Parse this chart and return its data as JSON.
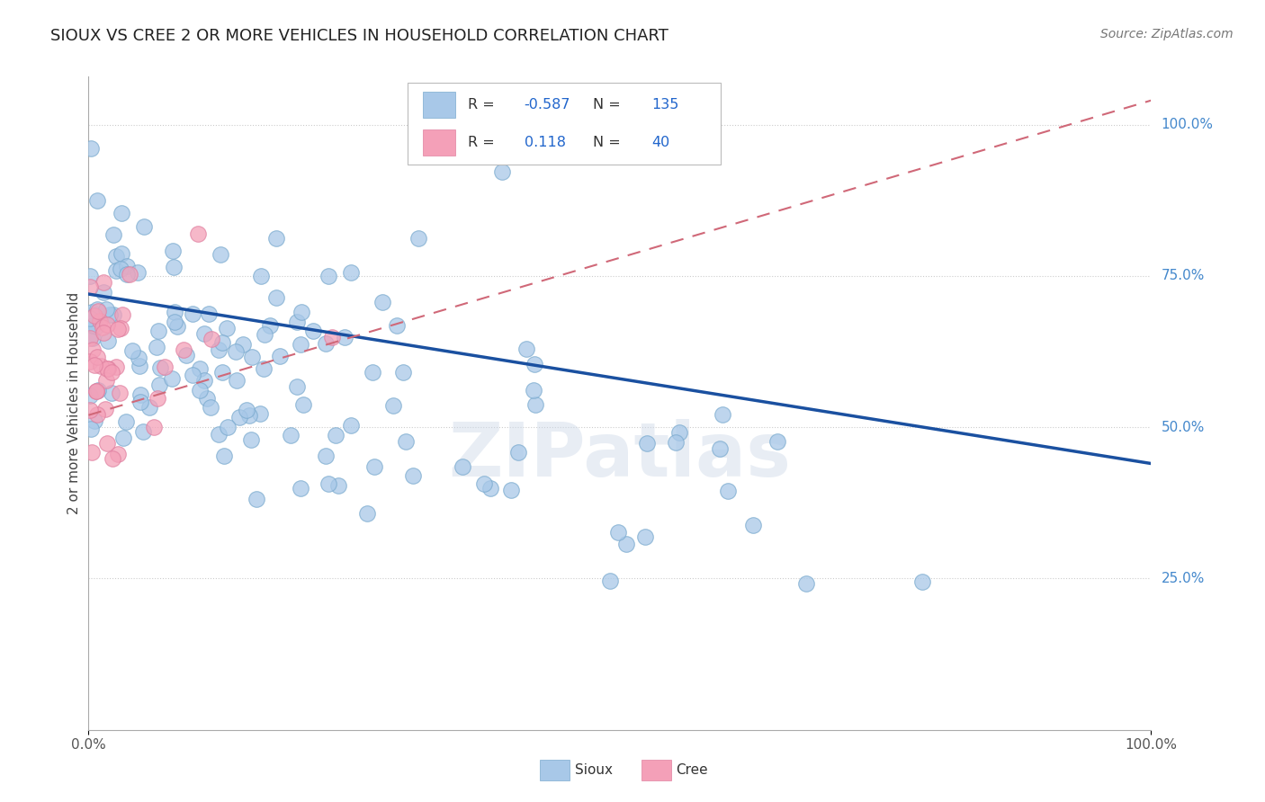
{
  "title": "SIOUX VS CREE 2 OR MORE VEHICLES IN HOUSEHOLD CORRELATION CHART",
  "source": "Source: ZipAtlas.com",
  "ylabel": "2 or more Vehicles in Household",
  "watermark": "ZIPatlas",
  "sioux_R": -0.587,
  "sioux_N": 135,
  "cree_R": 0.118,
  "cree_N": 40,
  "sioux_color": "#a8c8e8",
  "cree_color": "#f4a0b8",
  "sioux_line_color": "#1a50a0",
  "cree_line_color": "#d06878",
  "legend_R_color": "#2266cc",
  "background_color": "#ffffff",
  "grid_color": "#cccccc",
  "right_label_color": "#4488cc",
  "sioux_line_x0": 0.0,
  "sioux_line_y0": 0.72,
  "sioux_line_x1": 1.0,
  "sioux_line_y1": 0.44,
  "cree_line_x0": 0.0,
  "cree_line_y0": 0.52,
  "cree_line_x1": 1.0,
  "cree_line_y1": 1.04,
  "xlim": [
    0.0,
    1.0
  ],
  "ylim": [
    0.0,
    1.08
  ],
  "right_labels": {
    "0.25": "25.0%",
    "0.50": "50.0%",
    "0.75": "75.0%",
    "1.00": "100.0%"
  },
  "grid_yvals": [
    0.25,
    0.5,
    0.75,
    1.0
  ]
}
